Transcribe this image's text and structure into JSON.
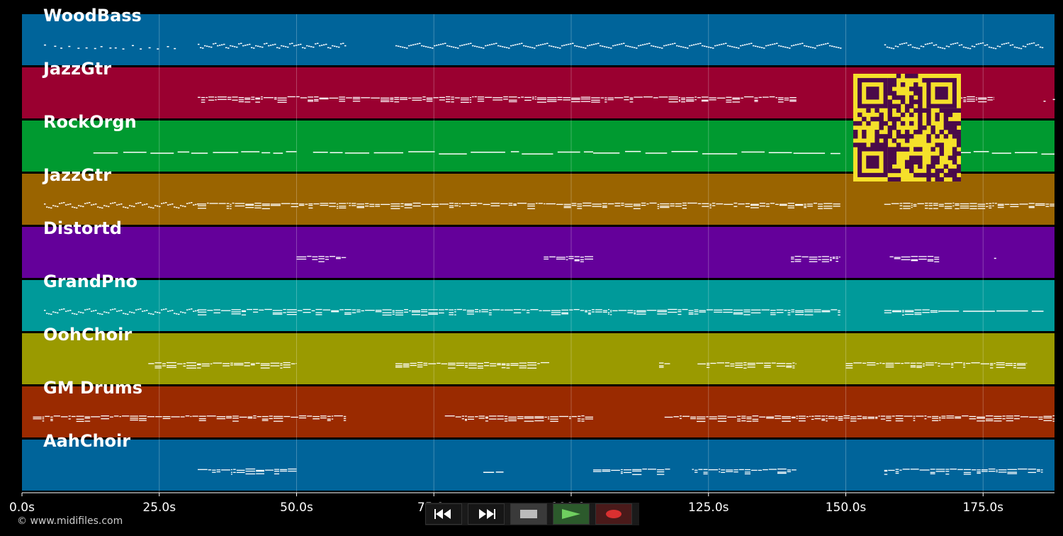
{
  "timeline": {
    "max_seconds": 188,
    "ticks": [
      {
        "t": 0,
        "label": "0.0s"
      },
      {
        "t": 25,
        "label": "25.0s"
      },
      {
        "t": 50,
        "label": "50.0s"
      },
      {
        "t": 75,
        "label": "75.0s"
      },
      {
        "t": 100,
        "label": "100.0s"
      },
      {
        "t": 125,
        "label": "125.0s"
      },
      {
        "t": 150,
        "label": "150.0s"
      },
      {
        "t": 175,
        "label": "175.0s"
      }
    ]
  },
  "tracks": [
    {
      "name": "WoodBass",
      "color": "#00649a",
      "segments": [
        [
          4,
          28,
          "dots"
        ],
        [
          32,
          59,
          "zigzag"
        ],
        [
          68,
          149,
          "zigzag"
        ],
        [
          157,
          186,
          "zigzag"
        ]
      ]
    },
    {
      "name": "JazzGtr",
      "color": "#9a0030",
      "segments": [
        [
          32,
          141,
          "dense"
        ],
        [
          157,
          177,
          "dense"
        ],
        [
          186,
          188,
          "dots"
        ]
      ]
    },
    {
      "name": "RockOrgn",
      "color": "#009a30",
      "segments": [
        [
          13,
          50,
          "line"
        ],
        [
          53,
          104,
          "line"
        ],
        [
          104,
          149,
          "line"
        ],
        [
          152,
          188,
          "line"
        ]
      ]
    },
    {
      "name": "JazzGtr",
      "color": "#9a6400",
      "segments": [
        [
          4,
          32,
          "zigzag"
        ],
        [
          32,
          149,
          "dense"
        ],
        [
          157,
          188,
          "dense"
        ]
      ]
    },
    {
      "name": "Distortd",
      "color": "#64009a",
      "segments": [
        [
          50,
          59,
          "dense"
        ],
        [
          95,
          104,
          "dense"
        ],
        [
          140,
          149,
          "dense"
        ],
        [
          158,
          167,
          "dense"
        ],
        [
          177,
          178,
          "dots"
        ]
      ]
    },
    {
      "name": "GrandPno",
      "color": "#009a9a",
      "segments": [
        [
          4,
          32,
          "zigzag"
        ],
        [
          32,
          149,
          "dense"
        ],
        [
          157,
          167,
          "dense"
        ],
        [
          167,
          186,
          "line"
        ]
      ]
    },
    {
      "name": "OohChoir",
      "color": "#9a9a00",
      "segments": [
        [
          23,
          50,
          "dense"
        ],
        [
          68,
          96,
          "dense"
        ],
        [
          116,
          118,
          "dense"
        ],
        [
          123,
          141,
          "dense"
        ],
        [
          150,
          183,
          "dense"
        ]
      ]
    },
    {
      "name": "GM Drums",
      "color": "#9a2a00",
      "segments": [
        [
          2,
          59,
          "dense"
        ],
        [
          77,
          104,
          "dense"
        ],
        [
          117,
          188,
          "dense"
        ]
      ]
    },
    {
      "name": "AahChoir",
      "color": "#00649a",
      "segments": [
        [
          32,
          50,
          "dense"
        ],
        [
          84,
          88,
          "line"
        ],
        [
          104,
          118,
          "dense"
        ],
        [
          122,
          141,
          "dense"
        ],
        [
          157,
          186,
          "dense"
        ]
      ]
    }
  ],
  "footer": {
    "copyright": "© www.midifiles.com"
  },
  "transport": {
    "rewind_icon": "rewind-icon",
    "forward_icon": "fast-forward-icon",
    "stop_icon": "stop-icon",
    "play_icon": "play-icon",
    "record_icon": "record-icon"
  },
  "qr": {
    "fg": "#4a0a4a",
    "bg": "#f5e02a"
  }
}
